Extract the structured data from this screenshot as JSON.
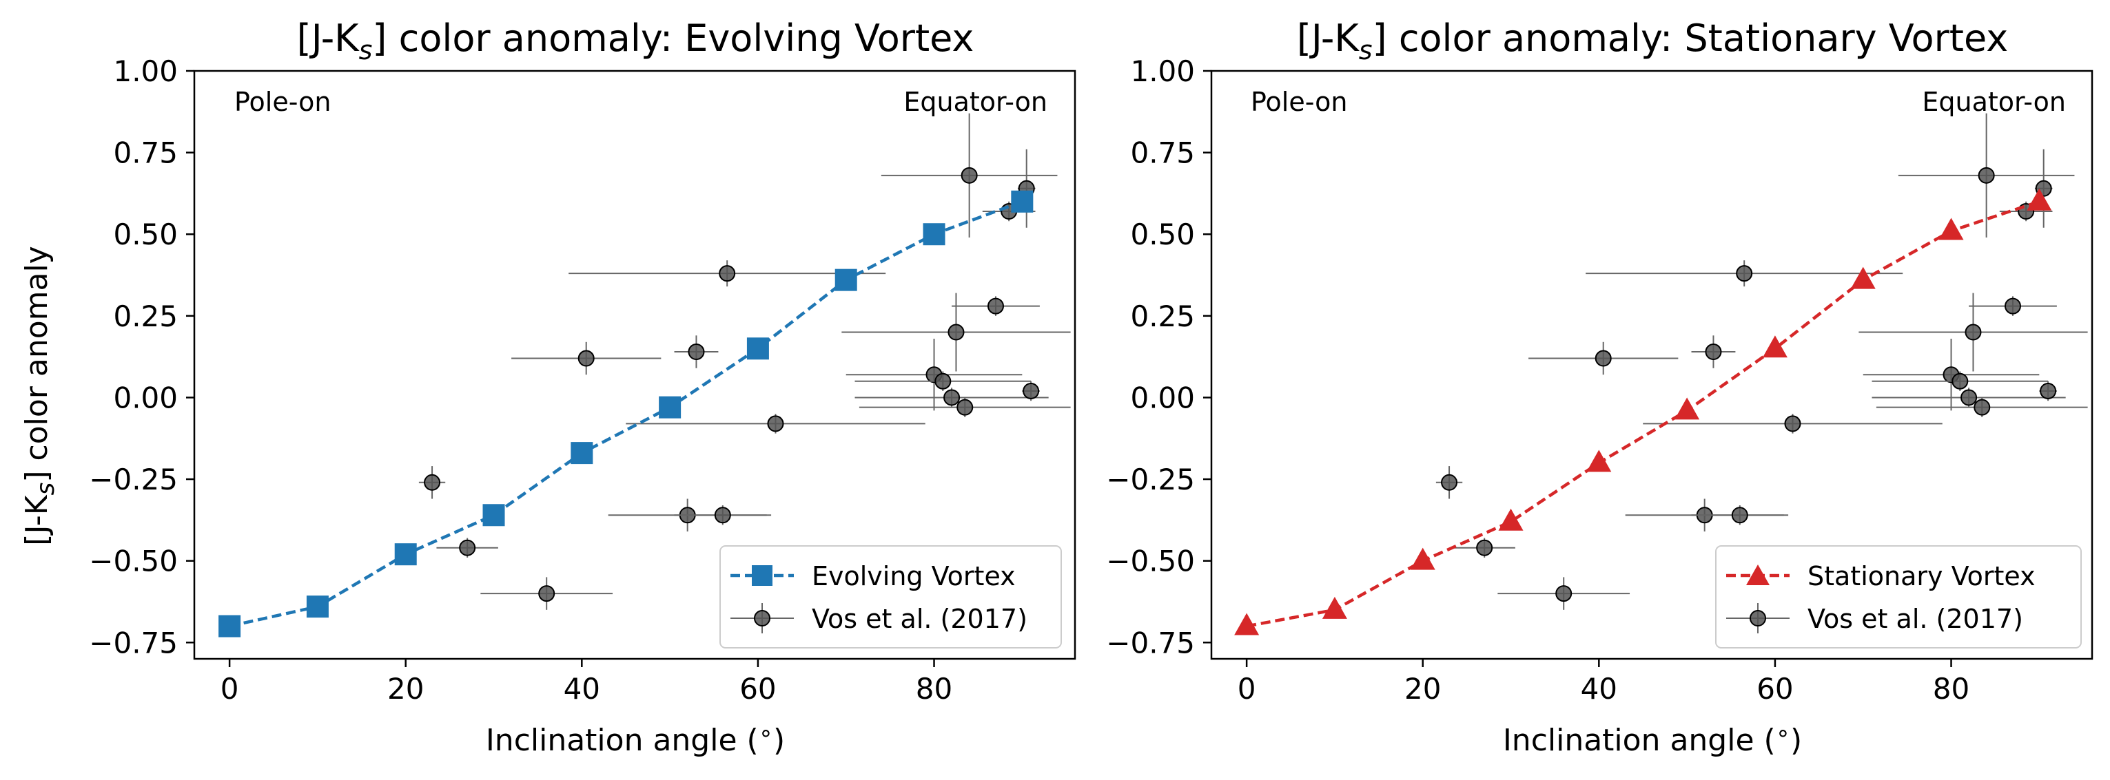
{
  "colors": {
    "evolving": "#1f77b4",
    "stationary": "#d62728",
    "observations": "#555555",
    "errorbars": "#666666"
  },
  "chart_data": [
    {
      "type": "line",
      "title": "[J-Ks] color anomaly: Evolving Vortex",
      "xlabel": "Inclination angle (°)",
      "ylabel": "[J-Ks] color anomaly",
      "xlim": [
        -4,
        96
      ],
      "ylim": [
        -0.8,
        1.0
      ],
      "xticks": [
        "0",
        "20",
        "40",
        "60",
        "80"
      ],
      "yticks": [
        "−0.75",
        "−0.50",
        "−0.25",
        "0.00",
        "0.25",
        "0.50",
        "0.75",
        "1.00"
      ],
      "grid": false,
      "legend_position": "lower right",
      "annotations": [
        "Pole-on",
        "Equator-on"
      ],
      "series": [
        {
          "name": "Evolving Vortex",
          "style": "dashed line with square markers",
          "color": "#1f77b4",
          "x": [
            0,
            10,
            20,
            30,
            40,
            50,
            60,
            70,
            80,
            90
          ],
          "y": [
            -0.7,
            -0.64,
            -0.48,
            -0.36,
            -0.17,
            -0.03,
            0.15,
            0.36,
            0.5,
            0.6
          ]
        },
        {
          "name": "Vos et al. (2017)",
          "style": "points with error bars",
          "color": "#555555",
          "points": [
            {
              "x": 23,
              "y": -0.26,
              "xerr": 1.5,
              "yerr": 0.05
            },
            {
              "x": 27,
              "y": -0.46,
              "xerr": 3.5,
              "yerr": 0.03
            },
            {
              "x": 36,
              "y": -0.6,
              "xerr": 7.5,
              "yerr": 0.05
            },
            {
              "x": 40.5,
              "y": 0.12,
              "xerr": 8.5,
              "yerr": 0.05
            },
            {
              "x": 52,
              "y": -0.36,
              "xerr": 9,
              "yerr": 0.05
            },
            {
              "x": 53,
              "y": 0.14,
              "xerr": 2.5,
              "yerr": 0.05
            },
            {
              "x": 56,
              "y": -0.36,
              "xerr": 5.5,
              "yerr": 0.03
            },
            {
              "x": 56.5,
              "y": 0.38,
              "xerr": 18,
              "yerr": 0.04
            },
            {
              "x": 62,
              "y": -0.08,
              "xerr": 17,
              "yerr": 0.03
            },
            {
              "x": 80,
              "y": 0.07,
              "xerr": 10,
              "yerr": 0.11
            },
            {
              "x": 81,
              "y": 0.05,
              "xerr": 10,
              "yerr": 0.03
            },
            {
              "x": 82,
              "y": 0.0,
              "xerr": 11,
              "yerr": 0.03
            },
            {
              "x": 82.5,
              "y": 0.2,
              "xerr": 13,
              "yerr": 0.12
            },
            {
              "x": 83.5,
              "y": -0.03,
              "xerr": 12,
              "yerr": 0.03
            },
            {
              "x": 84,
              "y": 0.68,
              "xerr": 10,
              "yerr": 0.19
            },
            {
              "x": 87,
              "y": 0.28,
              "xerr": 5,
              "yerr": 0.03
            },
            {
              "x": 88.5,
              "y": 0.57,
              "xerr": 3,
              "yerr": 0.03
            },
            {
              "x": 90.5,
              "y": 0.64,
              "xerr": 1,
              "yerr": 0.12
            },
            {
              "x": 91,
              "y": 0.02,
              "xerr": 1,
              "yerr": 0.03
            }
          ]
        }
      ]
    },
    {
      "type": "line",
      "title": "[J-Ks] color anomaly: Stationary Vortex",
      "xlabel": "Inclination angle (°)",
      "ylabel": "",
      "xlim": [
        -4,
        96
      ],
      "ylim": [
        -0.8,
        1.0
      ],
      "xticks": [
        "0",
        "20",
        "40",
        "60",
        "80"
      ],
      "yticks": [
        "−0.75",
        "−0.50",
        "−0.25",
        "0.00",
        "0.25",
        "0.50",
        "0.75",
        "1.00"
      ],
      "grid": false,
      "legend_position": "lower right",
      "annotations": [
        "Pole-on",
        "Equator-on"
      ],
      "series": [
        {
          "name": "Stationary Vortex",
          "style": "dashed line with triangle markers",
          "color": "#d62728",
          "x": [
            0,
            10,
            20,
            30,
            40,
            50,
            60,
            70,
            80,
            90
          ],
          "y": [
            -0.7,
            -0.65,
            -0.5,
            -0.38,
            -0.2,
            -0.04,
            0.15,
            0.36,
            0.51,
            0.6
          ]
        },
        {
          "name": "Vos et al. (2017)",
          "style": "points with error bars",
          "color": "#555555",
          "points": [
            {
              "x": 23,
              "y": -0.26,
              "xerr": 1.5,
              "yerr": 0.05
            },
            {
              "x": 27,
              "y": -0.46,
              "xerr": 3.5,
              "yerr": 0.03
            },
            {
              "x": 36,
              "y": -0.6,
              "xerr": 7.5,
              "yerr": 0.05
            },
            {
              "x": 40.5,
              "y": 0.12,
              "xerr": 8.5,
              "yerr": 0.05
            },
            {
              "x": 52,
              "y": -0.36,
              "xerr": 9,
              "yerr": 0.05
            },
            {
              "x": 53,
              "y": 0.14,
              "xerr": 2.5,
              "yerr": 0.05
            },
            {
              "x": 56,
              "y": -0.36,
              "xerr": 5.5,
              "yerr": 0.03
            },
            {
              "x": 56.5,
              "y": 0.38,
              "xerr": 18,
              "yerr": 0.04
            },
            {
              "x": 62,
              "y": -0.08,
              "xerr": 17,
              "yerr": 0.03
            },
            {
              "x": 80,
              "y": 0.07,
              "xerr": 10,
              "yerr": 0.11
            },
            {
              "x": 81,
              "y": 0.05,
              "xerr": 10,
              "yerr": 0.03
            },
            {
              "x": 82,
              "y": 0.0,
              "xerr": 11,
              "yerr": 0.03
            },
            {
              "x": 82.5,
              "y": 0.2,
              "xerr": 13,
              "yerr": 0.12
            },
            {
              "x": 83.5,
              "y": -0.03,
              "xerr": 12,
              "yerr": 0.03
            },
            {
              "x": 84,
              "y": 0.68,
              "xerr": 10,
              "yerr": 0.19
            },
            {
              "x": 87,
              "y": 0.28,
              "xerr": 5,
              "yerr": 0.03
            },
            {
              "x": 88.5,
              "y": 0.57,
              "xerr": 3,
              "yerr": 0.03
            },
            {
              "x": 90.5,
              "y": 0.64,
              "xerr": 1,
              "yerr": 0.12
            },
            {
              "x": 91,
              "y": 0.02,
              "xerr": 1,
              "yerr": 0.03
            }
          ]
        }
      ]
    }
  ]
}
